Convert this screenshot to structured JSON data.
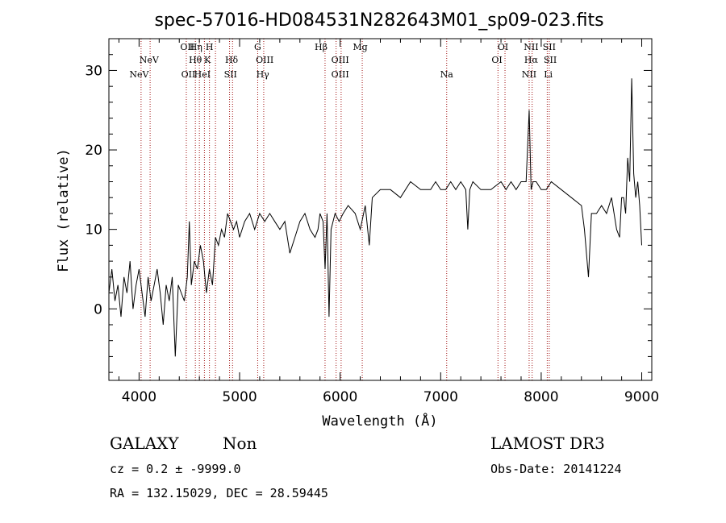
{
  "chart_data": {
    "type": "line",
    "title": "spec-57016-HD084531N282643M01_sp09-023.fits",
    "xlabel": "Wavelength (Å)",
    "ylabel": "Flux (relative)",
    "xlim": [
      3700,
      9100
    ],
    "ylim": [
      -9,
      34
    ],
    "xticks": [
      4000,
      5000,
      6000,
      7000,
      8000,
      9000
    ],
    "yticks": [
      0,
      10,
      20,
      30
    ],
    "series": [
      {
        "name": "flux",
        "x": [
          3700,
          3730,
          3760,
          3790,
          3820,
          3850,
          3880,
          3910,
          3940,
          3970,
          4000,
          4030,
          4060,
          4090,
          4120,
          4150,
          4180,
          4210,
          4240,
          4270,
          4300,
          4330,
          4360,
          4390,
          4420,
          4450,
          4480,
          4500,
          4520,
          4550,
          4580,
          4610,
          4640,
          4670,
          4700,
          4730,
          4760,
          4790,
          4820,
          4850,
          4880,
          4910,
          4940,
          4970,
          5000,
          5050,
          5100,
          5150,
          5200,
          5250,
          5300,
          5350,
          5400,
          5450,
          5500,
          5550,
          5600,
          5650,
          5700,
          5750,
          5780,
          5800,
          5830,
          5850,
          5870,
          5890,
          5910,
          5950,
          5990,
          6030,
          6080,
          6150,
          6200,
          6250,
          6290,
          6320,
          6400,
          6500,
          6600,
          6700,
          6800,
          6900,
          6950,
          7000,
          7050,
          7100,
          7150,
          7200,
          7250,
          7270,
          7290,
          7320,
          7400,
          7500,
          7600,
          7650,
          7700,
          7750,
          7800,
          7850,
          7880,
          7900,
          7920,
          7950,
          8000,
          8050,
          8100,
          8200,
          8300,
          8400,
          8430,
          8470,
          8500,
          8550,
          8600,
          8650,
          8700,
          8750,
          8780,
          8800,
          8820,
          8840,
          8860,
          8880,
          8900,
          8920,
          8940,
          8960,
          8980,
          9000
        ],
        "y": [
          2,
          5,
          1,
          3,
          -1,
          4,
          2,
          6,
          0,
          3,
          5,
          2,
          -1,
          4,
          1,
          3,
          5,
          2,
          -2,
          3,
          1,
          4,
          -6,
          3,
          2,
          1,
          4,
          11,
          3,
          6,
          5,
          8,
          6,
          2,
          5,
          3,
          9,
          8,
          10,
          9,
          12,
          11,
          10,
          11,
          9,
          11,
          12,
          10,
          12,
          11,
          12,
          11,
          10,
          11,
          7,
          9,
          11,
          12,
          10,
          9,
          10,
          12,
          11,
          5,
          12,
          -1,
          10,
          12,
          11,
          12,
          13,
          12,
          10,
          13,
          8,
          14,
          15,
          15,
          14,
          16,
          15,
          15,
          16,
          15,
          15,
          16,
          15,
          16,
          15,
          10,
          15,
          16,
          15,
          15,
          16,
          15,
          16,
          15,
          16,
          16,
          25,
          15,
          16,
          16,
          15,
          15,
          16,
          15,
          14,
          13,
          10,
          4,
          12,
          12,
          13,
          12,
          14,
          10,
          9,
          14,
          14,
          12,
          19,
          16,
          29,
          17,
          14,
          16,
          13,
          8
        ]
      }
    ],
    "emission_lines": {
      "row1": [
        {
          "label": "OII",
          "x": 4480
        },
        {
          "label": "Hη",
          "x": 4565
        },
        {
          "label": "H",
          "x": 4700
        },
        {
          "label": "G",
          "x": 5180
        },
        {
          "label": "Hβ",
          "x": 5810
        },
        {
          "label": "Mg",
          "x": 6200
        },
        {
          "label": "OI",
          "x": 7620
        },
        {
          "label": "NII",
          "x": 7900
        },
        {
          "label": "SII",
          "x": 8080
        }
      ],
      "row2": [
        {
          "label": "NeV",
          "x": 4100
        },
        {
          "label": "Hθ",
          "x": 4560
        },
        {
          "label": "K",
          "x": 4680
        },
        {
          "label": "Hδ",
          "x": 4920
        },
        {
          "label": "OIII",
          "x": 5250
        },
        {
          "label": "OIII",
          "x": 6000
        },
        {
          "label": "OI",
          "x": 7560
        },
        {
          "label": "Hα",
          "x": 7900
        },
        {
          "label": "SII",
          "x": 8090
        }
      ],
      "row3": [
        {
          "label": "NeV",
          "x": 4000
        },
        {
          "label": "OII",
          "x": 4490
        },
        {
          "label": "HeI",
          "x": 4630
        },
        {
          "label": "SII",
          "x": 4910
        },
        {
          "label": "Hγ",
          "x": 5230
        },
        {
          "label": "OIII",
          "x": 6000
        },
        {
          "label": "Na",
          "x": 7060
        },
        {
          "label": "NII",
          "x": 7880
        },
        {
          "label": "Li",
          "x": 8070
        }
      ],
      "marker_x": [
        4020,
        4110,
        4470,
        4560,
        4600,
        4650,
        4700,
        4760,
        4900,
        4930,
        5180,
        5240,
        5850,
        5960,
        6010,
        6220,
        7060,
        7570,
        7640,
        7880,
        7910,
        8060,
        8080
      ]
    }
  },
  "info": {
    "object_class": "GALAXY",
    "subclass": "Non",
    "redshift": "cz = 0.2 ± -9999.0",
    "coordinates": "RA = 132.15029, DEC =  28.59445",
    "survey": "LAMOST DR3",
    "obs_date": "Obs-Date: 20141224"
  },
  "colors": {
    "axis": "#000000",
    "line_marker": "#a01010",
    "spectrum": "#000000"
  }
}
